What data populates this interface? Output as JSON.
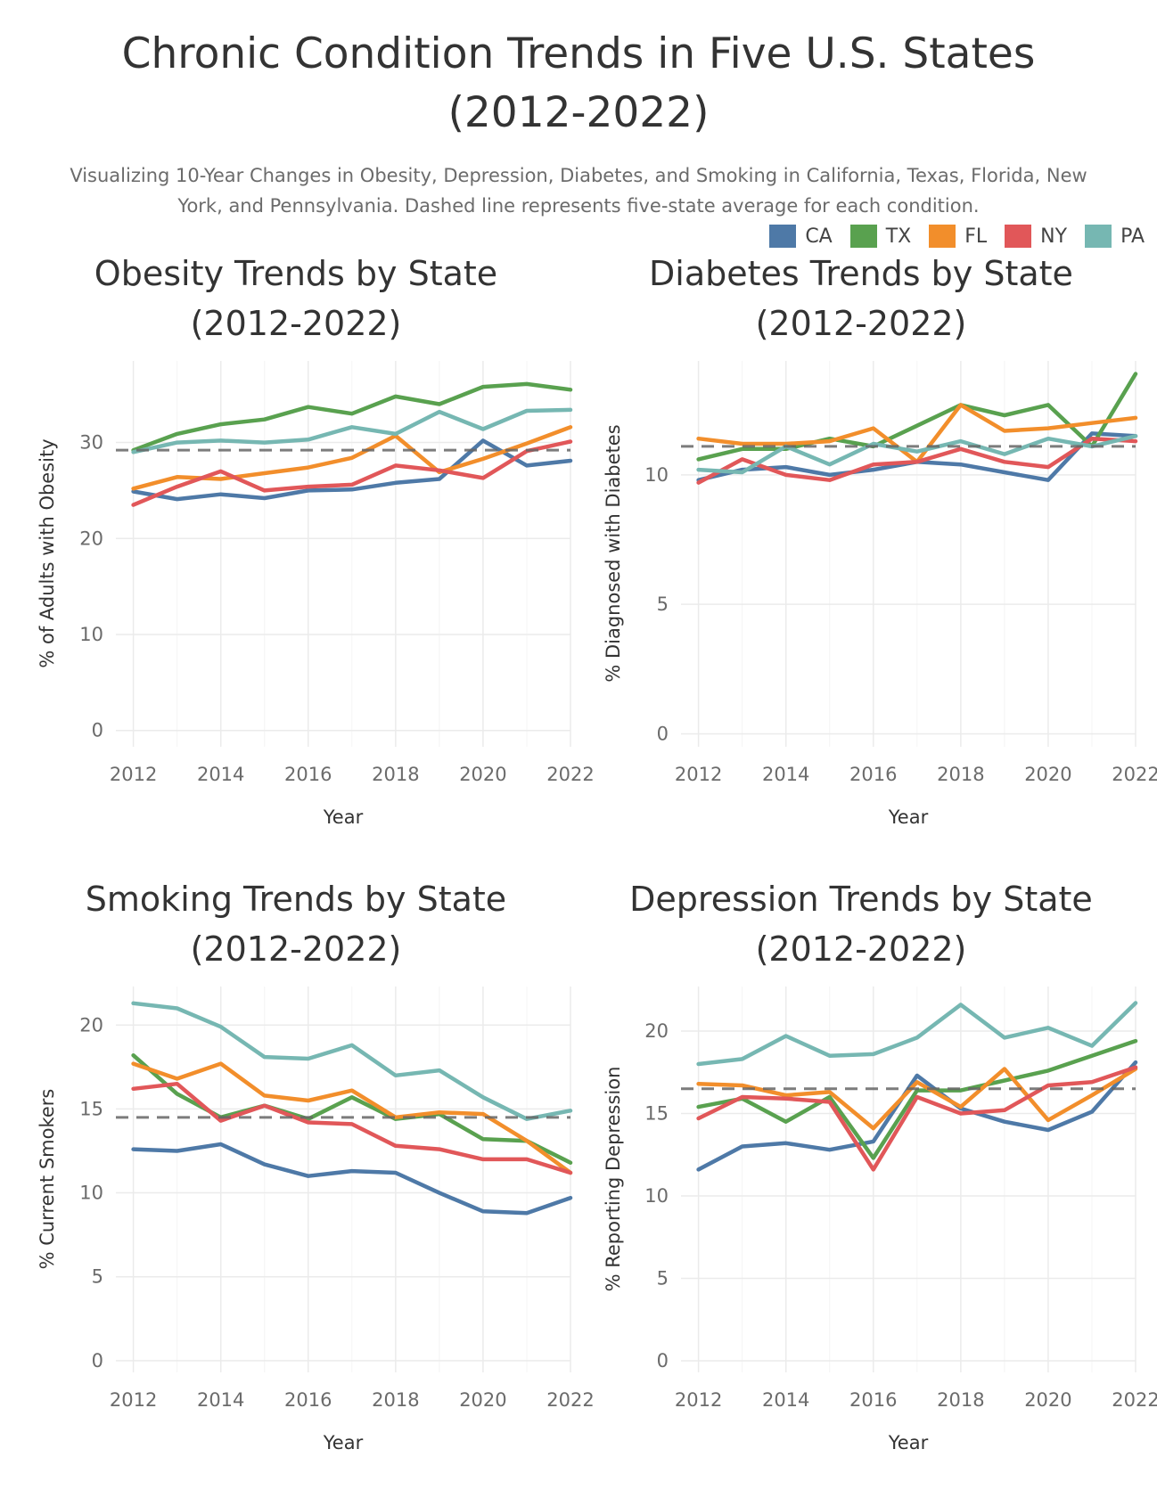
{
  "title_line1": "Chronic Condition Trends in Five U.S. States",
  "title_line2": "(2012-2022)",
  "subtitle_line1": "Visualizing 10-Year Changes in Obesity, Depression, Diabetes, and Smoking in California, Texas, Florida, New",
  "subtitle_line2": "York, and Pennsylvania. Dashed line represents five-state average for each condition.",
  "legend": [
    {
      "label": "CA",
      "color": "#4e79a7"
    },
    {
      "label": "TX",
      "color": "#59a14f"
    },
    {
      "label": "FL",
      "color": "#f28e2b"
    },
    {
      "label": "NY",
      "color": "#e15759"
    },
    {
      "label": "PA",
      "color": "#76b7b2"
    }
  ],
  "chart_data": [
    {
      "type": "line",
      "title": [
        "Obesity Trends by State",
        "(2012-2022)"
      ],
      "xlabel": "Year",
      "ylabel": "% of Adults with Obesity",
      "x": [
        2012,
        2013,
        2014,
        2015,
        2016,
        2017,
        2018,
        2019,
        2020,
        2021,
        2022
      ],
      "xticks": [
        2012,
        2014,
        2016,
        2018,
        2020,
        2022
      ],
      "yticks": [
        0,
        10,
        20,
        30
      ],
      "average": 29.2,
      "series": [
        {
          "name": "CA",
          "values": [
            24.9,
            24.1,
            24.6,
            24.2,
            25.0,
            25.1,
            25.8,
            26.2,
            30.2,
            27.6,
            28.1
          ]
        },
        {
          "name": "TX",
          "values": [
            29.2,
            30.9,
            31.9,
            32.4,
            33.7,
            33.0,
            34.8,
            34.0,
            35.8,
            36.1,
            35.5
          ]
        },
        {
          "name": "FL",
          "values": [
            25.2,
            26.4,
            26.2,
            26.8,
            27.4,
            28.4,
            30.7,
            26.9,
            28.3,
            29.9,
            31.6
          ]
        },
        {
          "name": "NY",
          "values": [
            23.5,
            25.4,
            27.0,
            25.0,
            25.4,
            25.6,
            27.6,
            27.1,
            26.3,
            29.1,
            30.1
          ]
        },
        {
          "name": "PA",
          "values": [
            29.0,
            30.0,
            30.2,
            30.0,
            30.3,
            31.6,
            30.9,
            33.2,
            31.4,
            33.3,
            33.4
          ]
        }
      ]
    },
    {
      "type": "line",
      "title": [
        "Diabetes Trends by State",
        "(2012-2022)"
      ],
      "xlabel": "Year",
      "ylabel": "% Diagnosed with Diabetes",
      "x": [
        2012,
        2013,
        2014,
        2015,
        2016,
        2017,
        2018,
        2019,
        2020,
        2021,
        2022
      ],
      "xticks": [
        2012,
        2014,
        2016,
        2018,
        2020,
        2022
      ],
      "yticks": [
        0,
        5,
        10
      ],
      "average": 11.1,
      "series": [
        {
          "name": "CA",
          "values": [
            9.8,
            10.2,
            10.3,
            10.0,
            10.2,
            10.5,
            10.4,
            10.1,
            9.8,
            11.6,
            11.5
          ]
        },
        {
          "name": "TX",
          "values": [
            10.6,
            11.0,
            11.0,
            11.4,
            11.1,
            11.9,
            12.7,
            12.3,
            12.7,
            11.1,
            13.9
          ]
        },
        {
          "name": "FL",
          "values": [
            11.4,
            11.2,
            11.2,
            11.3,
            11.8,
            10.5,
            12.7,
            11.7,
            11.8,
            12.0,
            12.2
          ]
        },
        {
          "name": "NY",
          "values": [
            9.7,
            10.6,
            10.0,
            9.8,
            10.4,
            10.5,
            11.0,
            10.5,
            10.3,
            11.4,
            11.3
          ]
        },
        {
          "name": "PA",
          "values": [
            10.2,
            10.1,
            11.1,
            10.4,
            11.2,
            10.9,
            11.3,
            10.8,
            11.4,
            11.1,
            11.5
          ]
        }
      ]
    },
    {
      "type": "line",
      "title": [
        "Smoking Trends by State",
        "(2012-2022)"
      ],
      "xlabel": "Year",
      "ylabel": "% Current Smokers",
      "x": [
        2012,
        2013,
        2014,
        2015,
        2016,
        2017,
        2018,
        2019,
        2020,
        2021,
        2022
      ],
      "xticks": [
        2012,
        2014,
        2016,
        2018,
        2020,
        2022
      ],
      "yticks": [
        0,
        5,
        10,
        15,
        20
      ],
      "average": 14.5,
      "series": [
        {
          "name": "CA",
          "values": [
            12.6,
            12.5,
            12.9,
            11.7,
            11.0,
            11.3,
            11.2,
            10.0,
            8.9,
            8.8,
            9.7
          ]
        },
        {
          "name": "TX",
          "values": [
            18.2,
            15.9,
            14.5,
            15.2,
            14.4,
            15.7,
            14.4,
            14.7,
            13.2,
            13.1,
            11.8
          ]
        },
        {
          "name": "FL",
          "values": [
            17.7,
            16.8,
            17.7,
            15.8,
            15.5,
            16.1,
            14.5,
            14.8,
            14.7,
            13.1,
            11.2
          ]
        },
        {
          "name": "NY",
          "values": [
            16.2,
            16.5,
            14.3,
            15.2,
            14.2,
            14.1,
            12.8,
            12.6,
            12.0,
            12.0,
            11.2
          ]
        },
        {
          "name": "PA",
          "values": [
            21.3,
            21.0,
            19.9,
            18.1,
            18.0,
            18.8,
            17.0,
            17.3,
            15.7,
            14.4,
            14.9
          ]
        }
      ]
    },
    {
      "type": "line",
      "title": [
        "Depression Trends by State",
        "(2012-2022)"
      ],
      "xlabel": "Year",
      "ylabel": "% Reporting Depression",
      "x": [
        2012,
        2013,
        2014,
        2015,
        2016,
        2017,
        2018,
        2019,
        2020,
        2021,
        2022
      ],
      "xticks": [
        2012,
        2014,
        2016,
        2018,
        2020,
        2022
      ],
      "yticks": [
        0,
        5,
        10,
        15,
        20
      ],
      "average": 16.5,
      "series": [
        {
          "name": "CA",
          "values": [
            11.6,
            13.0,
            13.2,
            12.8,
            13.3,
            17.3,
            15.3,
            14.5,
            14.0,
            15.1,
            18.1
          ]
        },
        {
          "name": "TX",
          "values": [
            15.4,
            15.9,
            14.5,
            16.0,
            12.3,
            16.4,
            16.4,
            17.0,
            17.6,
            18.5,
            19.4
          ]
        },
        {
          "name": "FL",
          "values": [
            16.8,
            16.7,
            16.1,
            16.3,
            14.1,
            16.9,
            15.4,
            17.7,
            14.6,
            16.1,
            17.7
          ]
        },
        {
          "name": "NY",
          "values": [
            14.7,
            16.0,
            15.9,
            15.7,
            11.6,
            16.0,
            15.0,
            15.2,
            16.7,
            16.9,
            17.8
          ]
        },
        {
          "name": "PA",
          "values": [
            18.0,
            18.3,
            19.7,
            18.5,
            18.6,
            19.6,
            21.6,
            19.6,
            20.2,
            19.1,
            21.7
          ]
        }
      ]
    }
  ]
}
